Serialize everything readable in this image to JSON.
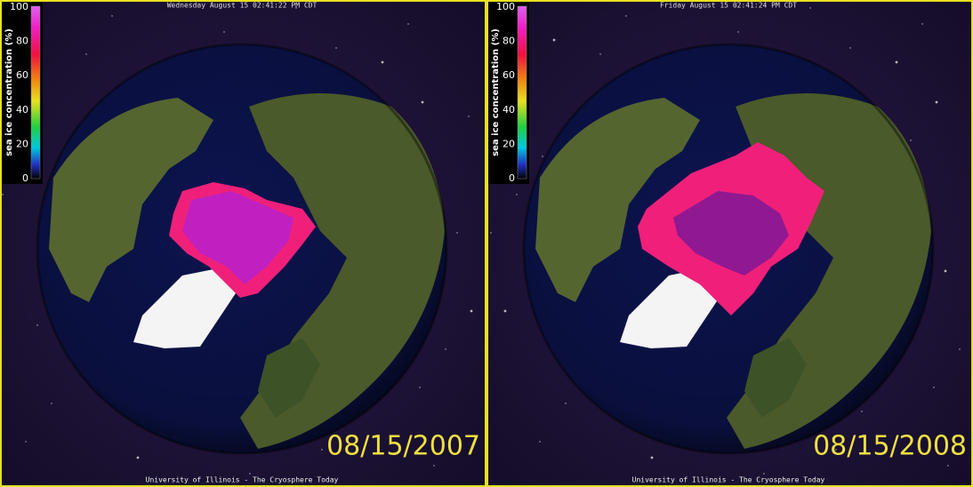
{
  "panels": [
    {
      "timestamp": "Wednesday August 15 02:41:22 PM CDT",
      "date": "08/15/2007",
      "footer": "University of Illinois - The Cryosphere Today",
      "colorbar": {
        "label": "sea ice concentration (%)",
        "ticks": [
          100,
          80,
          60,
          40,
          20,
          0
        ]
      }
    },
    {
      "timestamp": "Friday August 15 02:41:24 PM CDT",
      "date": "08/15/2008",
      "footer": "University of Illinois - The Cryosphere Today",
      "colorbar": {
        "label": "sea ice concentration (%)",
        "ticks": [
          100,
          80,
          60,
          40,
          20,
          0
        ]
      }
    }
  ]
}
